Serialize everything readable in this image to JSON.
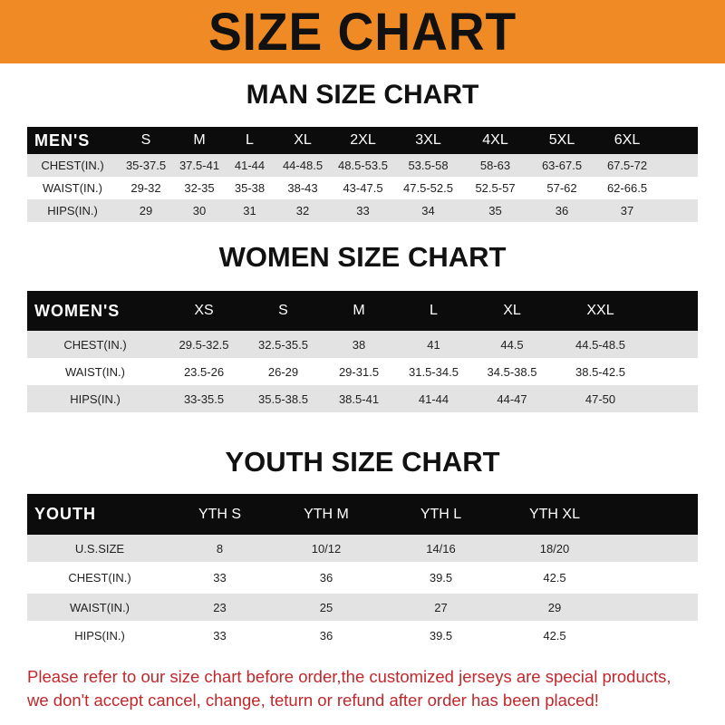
{
  "banner": {
    "title": "SIZE CHART",
    "color": "#f08a25"
  },
  "men": {
    "title": "MAN SIZE CHART",
    "header": "MEN'S",
    "sizes": [
      "S",
      "M",
      "L",
      "XL",
      "2XL",
      "3XL",
      "4XL",
      "5XL",
      "6XL"
    ],
    "rows": [
      {
        "label": "CHEST(IN.)",
        "values": [
          "35-37.5",
          "37.5-41",
          "41-44",
          "44-48.5",
          "48.5-53.5",
          "53.5-58",
          "58-63",
          "63-67.5",
          "67.5-72"
        ]
      },
      {
        "label": "WAIST(IN.)",
        "values": [
          "29-32",
          "32-35",
          "35-38",
          "38-43",
          "43-47.5",
          "47.5-52.5",
          "52.5-57",
          "57-62",
          "62-66.5"
        ]
      },
      {
        "label": "HIPS(IN.)",
        "values": [
          "29",
          "30",
          "31",
          "32",
          "33",
          "34",
          "35",
          "36",
          "37"
        ]
      }
    ]
  },
  "women": {
    "title": "WOMEN SIZE CHART",
    "header": "WOMEN'S",
    "sizes": [
      "XS",
      "S",
      "M",
      "L",
      "XL",
      "XXL"
    ],
    "rows": [
      {
        "label": "CHEST(IN.)",
        "values": [
          "29.5-32.5",
          "32.5-35.5",
          "38",
          "41",
          "44.5",
          "44.5-48.5"
        ]
      },
      {
        "label": "WAIST(IN.)",
        "values": [
          "23.5-26",
          "26-29",
          "29-31.5",
          "31.5-34.5",
          "34.5-38.5",
          "38.5-42.5"
        ]
      },
      {
        "label": "HIPS(IN.)",
        "values": [
          "33-35.5",
          "35.5-38.5",
          "38.5-41",
          "41-44",
          "44-47",
          "47-50"
        ]
      }
    ]
  },
  "youth": {
    "title": "YOUTH SIZE CHART",
    "header": "YOUTH",
    "sizes": [
      "YTH S",
      "YTH M",
      "YTH L",
      "YTH XL"
    ],
    "rows": [
      {
        "label": "U.S.SIZE",
        "values": [
          "8",
          "10/12",
          "14/16",
          "18/20"
        ]
      },
      {
        "label": "CHEST(IN.)",
        "values": [
          "33",
          "36",
          "39.5",
          "42.5"
        ]
      },
      {
        "label": "WAIST(IN.)",
        "values": [
          "23",
          "25",
          "27",
          "29"
        ]
      },
      {
        "label": "HIPS(IN.)",
        "values": [
          "33",
          "36",
          "39.5",
          "42.5"
        ]
      }
    ]
  },
  "note": {
    "line1": "Please refer to our size chart before order,the customized jerseys are special products,",
    "line2": "we don't accept cancel, change, teturn or refund after order has been placed!",
    "color": "#c0282c"
  }
}
